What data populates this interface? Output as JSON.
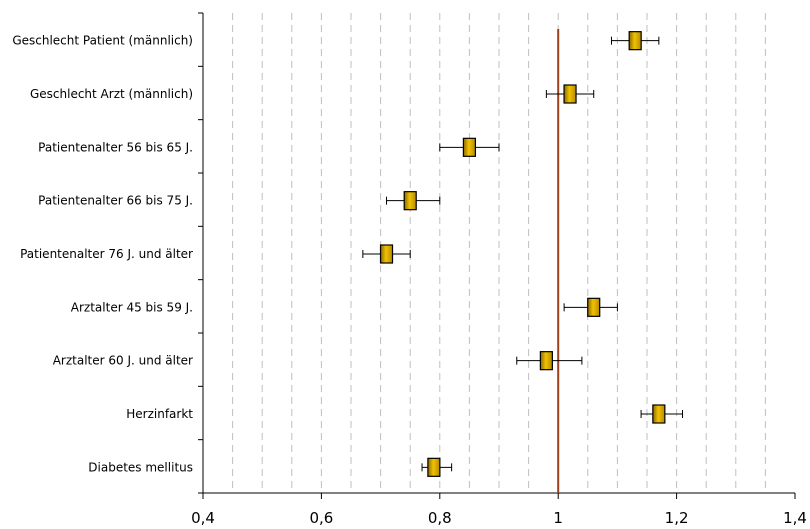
{
  "chart_data": {
    "type": "forest",
    "title": "",
    "xlabel": "",
    "ylabel": "",
    "xlim": [
      0.4,
      1.4
    ],
    "x_ticks": [
      "0,4",
      "0,6",
      "0,8",
      "1",
      "1,2",
      "1,4"
    ],
    "x_tick_values": [
      0.4,
      0.6,
      0.8,
      1.0,
      1.2,
      1.4
    ],
    "minor_gridline_step": 0.05,
    "grid": "vertical dashed",
    "reference_line": 1.0,
    "categories": [
      "Geschlecht Patient (männlich)",
      "Geschlecht Arzt (männlich)",
      "Patientenalter 56 bis 65 J.",
      "Patientenalter 66 bis 75 J.",
      "Patientenalter 76 J. und älter",
      "Arztalter 45 bis 59 J.",
      "Arztalter 60 J. und älter",
      "Herzinfarkt",
      "Diabetes mellitus"
    ],
    "estimates": [
      1.13,
      1.02,
      0.85,
      0.75,
      0.71,
      1.06,
      0.98,
      1.17,
      0.79
    ],
    "ci_lower": [
      1.09,
      0.98,
      0.8,
      0.71,
      0.67,
      1.01,
      0.93,
      1.14,
      0.77
    ],
    "ci_upper": [
      1.17,
      1.06,
      0.9,
      0.8,
      0.75,
      1.1,
      1.04,
      1.21,
      0.82
    ],
    "colors": {
      "marker_fill": "#f2c200",
      "marker_edge": "#000000",
      "reference_line": "#a0401a",
      "grid": "#bfbfbf",
      "axis": "#000000"
    }
  }
}
